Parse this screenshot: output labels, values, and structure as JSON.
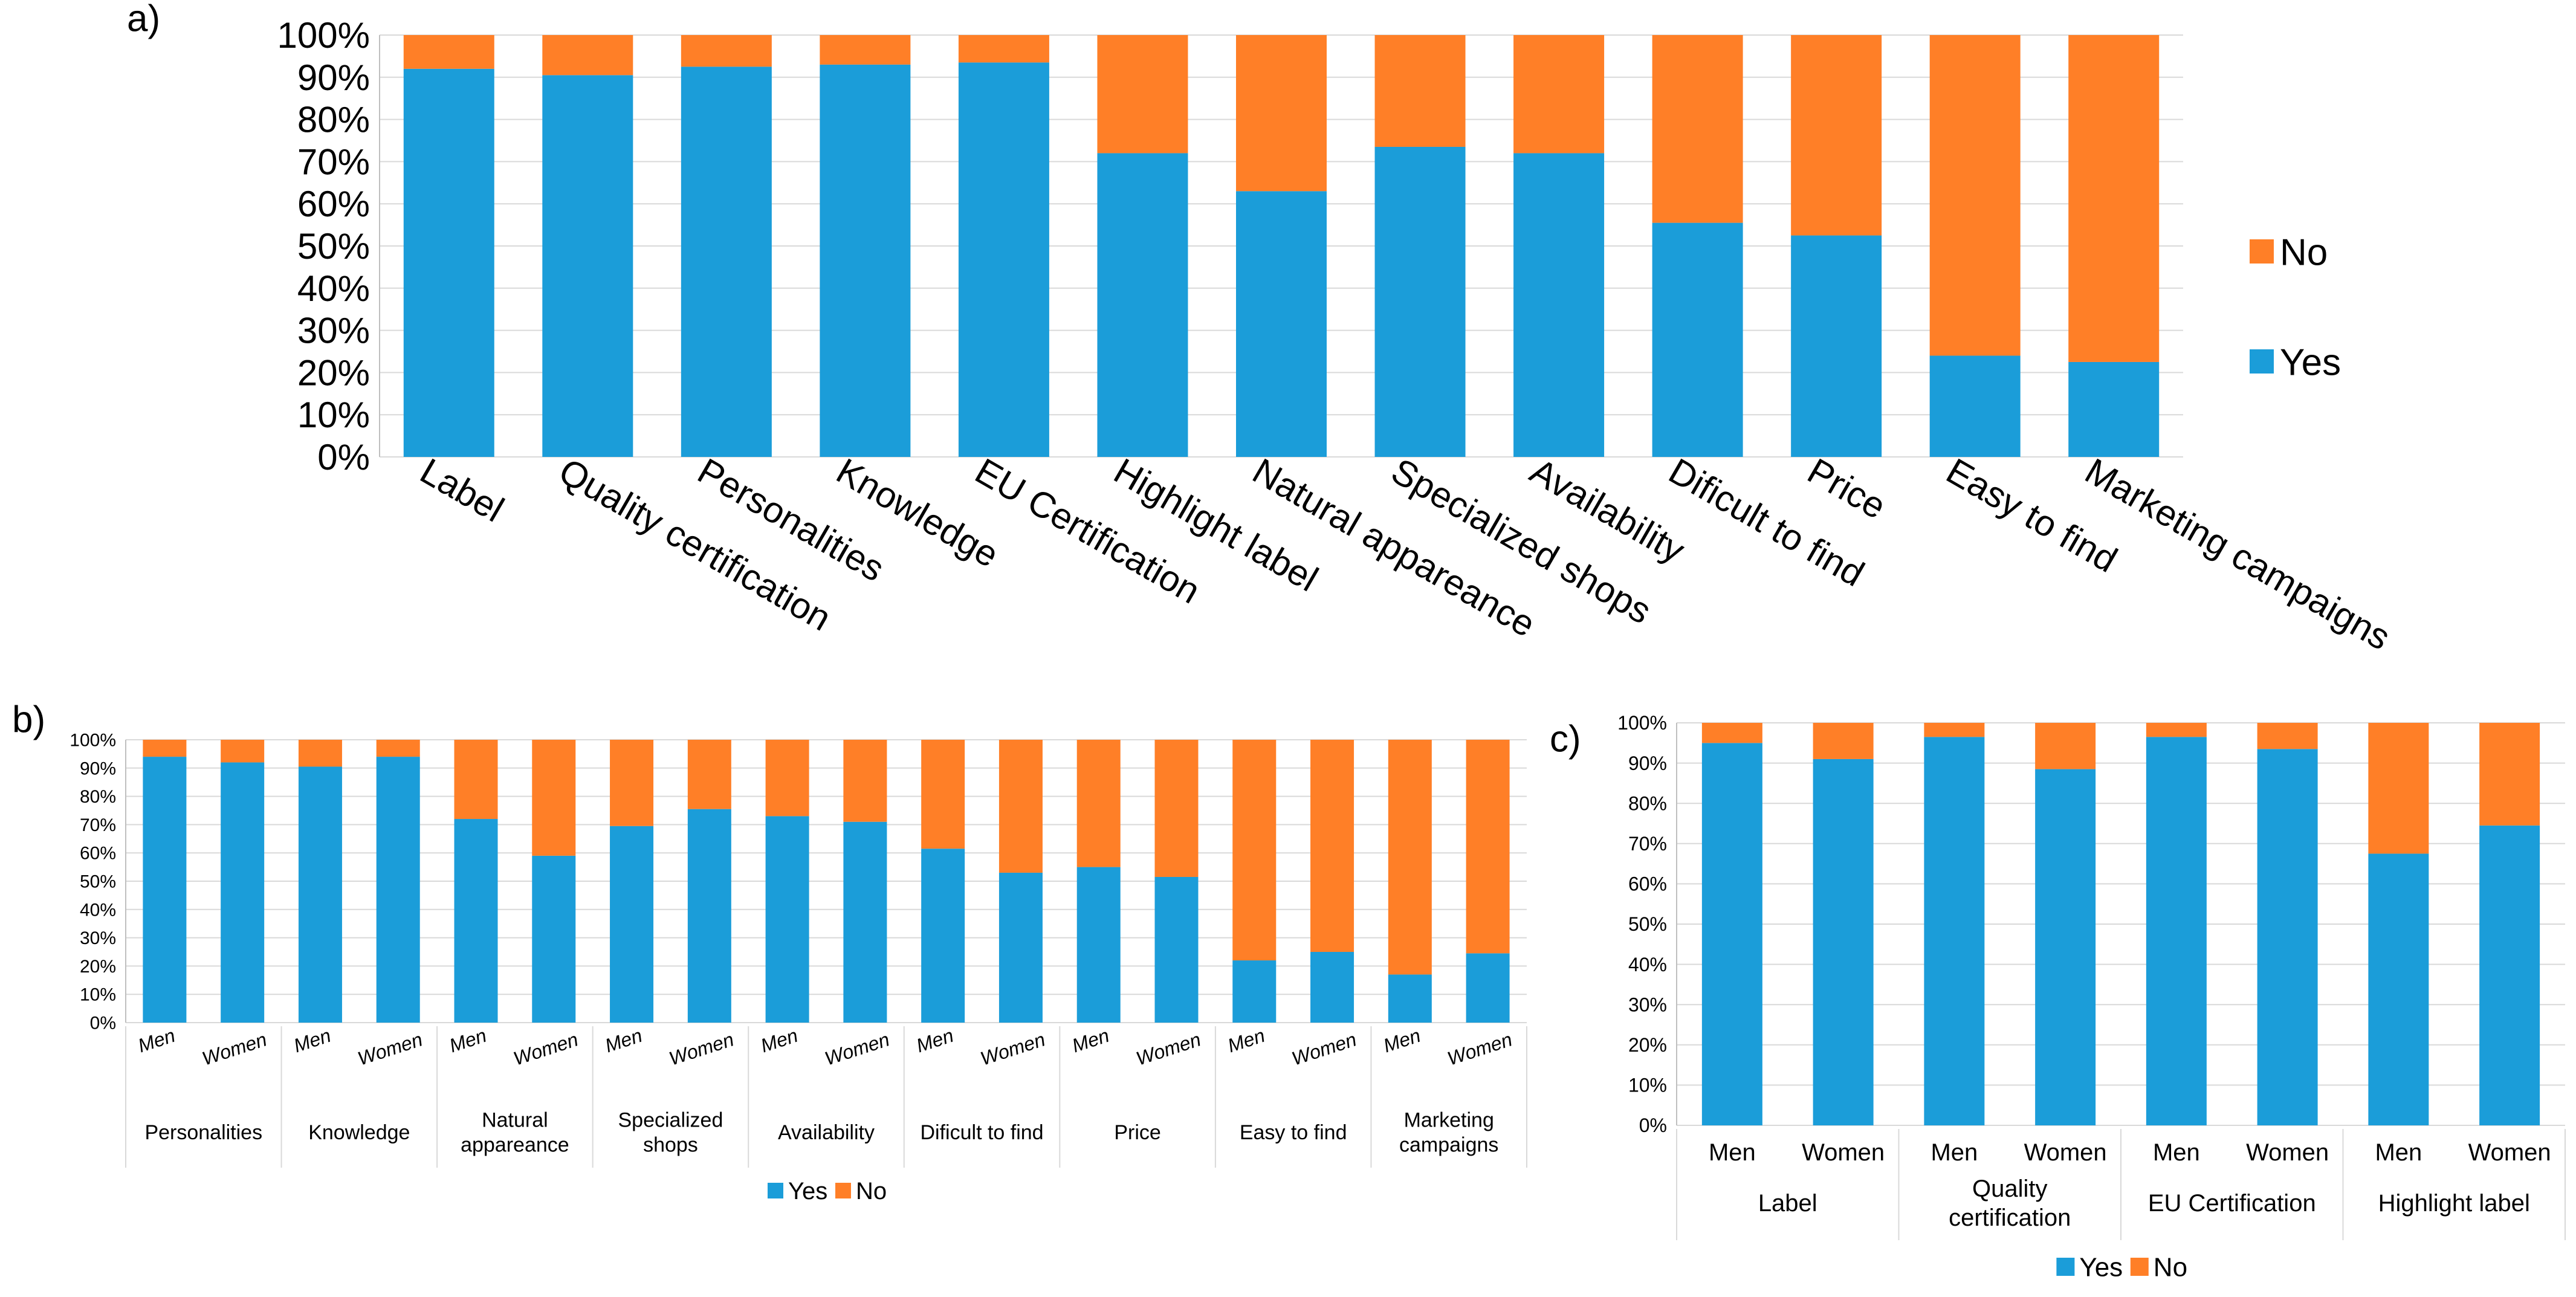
{
  "figure": {
    "colors": {
      "yes": "#1B9DD9",
      "no": "#FF7F27",
      "grid": "#D9D9D9",
      "axis": "#BFBFBF"
    }
  },
  "chart_data": [
    {
      "id": "a",
      "panel_label": "a)",
      "type": "bar",
      "stacked": true,
      "percent": true,
      "categories": [
        "Label",
        "Quality certification",
        "Personalities",
        "Knowledge",
        "EU Certification",
        "Highlight label",
        "Natural appareance",
        "Specialized shops",
        "Availability",
        "Dificult to find",
        "Price",
        "Easy to find",
        "Marketing campaigns"
      ],
      "series": [
        {
          "name": "Yes",
          "values": [
            92,
            90.5,
            92.5,
            93,
            93.5,
            72,
            63,
            73.5,
            72,
            55.5,
            52.5,
            24,
            22.5
          ]
        },
        {
          "name": "No",
          "values": [
            8,
            9.5,
            7.5,
            7,
            6.5,
            28,
            37,
            26.5,
            28,
            44.5,
            47.5,
            76,
            77.5
          ]
        }
      ],
      "yticks": [
        "0%",
        "10%",
        "20%",
        "30%",
        "40%",
        "50%",
        "60%",
        "70%",
        "80%",
        "90%",
        "100%"
      ],
      "ylim": [
        0,
        100
      ],
      "legend": [
        "No",
        "Yes"
      ],
      "legend_position": "right",
      "grid": true
    },
    {
      "id": "b",
      "panel_label": "b)",
      "type": "bar",
      "stacked": true,
      "percent": true,
      "groups": [
        "Personalities",
        "Knowledge",
        "Natural appareance",
        "Specialized shops",
        "Availability",
        "Dificult to find",
        "Price",
        "Easy to find",
        "Marketing campaigns"
      ],
      "subcategories": [
        "Men",
        "Women"
      ],
      "series": [
        {
          "name": "Yes",
          "values": [
            94,
            92,
            90.5,
            94,
            72,
            59,
            69.5,
            75.5,
            73,
            71,
            61.5,
            53,
            55,
            51.5,
            22,
            25,
            17,
            24.5
          ]
        },
        {
          "name": "No",
          "values": [
            6,
            8,
            9.5,
            6,
            28,
            41,
            30.5,
            24.5,
            27,
            29,
            38.5,
            47,
            45,
            48.5,
            78,
            75,
            83,
            75.5
          ]
        }
      ],
      "yticks": [
        "0%",
        "10%",
        "20%",
        "30%",
        "40%",
        "50%",
        "60%",
        "70%",
        "80%",
        "90%",
        "100%"
      ],
      "ylim": [
        0,
        100
      ],
      "legend": [
        "Yes",
        "No"
      ],
      "legend_position": "bottom",
      "grid": true
    },
    {
      "id": "c",
      "panel_label": "c)",
      "type": "bar",
      "stacked": true,
      "percent": true,
      "groups": [
        "Label",
        "Quality certification",
        "EU Certification",
        "Highlight label"
      ],
      "subcategories": [
        "Men",
        "Women"
      ],
      "series": [
        {
          "name": "Yes",
          "values": [
            95,
            91,
            96.5,
            88.5,
            96.5,
            93.5,
            67.5,
            74.5
          ]
        },
        {
          "name": "No",
          "values": [
            5,
            9,
            3.5,
            11.5,
            3.5,
            6.5,
            32.5,
            25.5
          ]
        }
      ],
      "yticks": [
        "0%",
        "10%",
        "20%",
        "30%",
        "40%",
        "50%",
        "60%",
        "70%",
        "80%",
        "90%",
        "100%"
      ],
      "ylim": [
        0,
        100
      ],
      "legend": [
        "Yes",
        "No"
      ],
      "legend_position": "bottom",
      "grid": true
    }
  ]
}
